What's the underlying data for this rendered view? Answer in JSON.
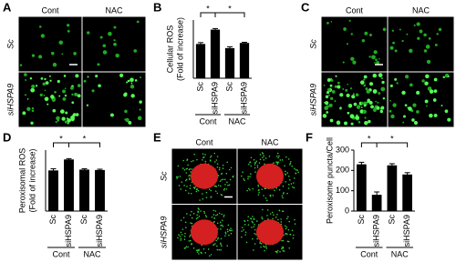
{
  "panel_labels": [
    "A",
    "B",
    "C",
    "D",
    "E",
    "F"
  ],
  "image_panels": [
    {
      "columns": [
        "Cont",
        "NAC"
      ],
      "rows": [
        "Sc",
        "siHSPA9"
      ]
    },
    {
      "columns": [
        "Cont",
        "NAC"
      ],
      "rows": [
        "Sc",
        "siHSPA9"
      ]
    },
    {
      "columns": [
        "Cont",
        "NAC"
      ],
      "rows": [
        "Sc",
        "siHSPA9"
      ]
    }
  ],
  "chart_data": [
    {
      "type": "bar",
      "ylabel": [
        "Cellular ROS",
        "(Fold of increase)"
      ],
      "categories": [
        "Sc",
        "siHSPA9",
        "Sc",
        "siHSPA9"
      ],
      "groups": [
        "Cont",
        "NAC"
      ],
      "values": [
        1.0,
        1.42,
        0.88,
        1.03
      ],
      "errors": [
        0.04,
        0.03,
        0.04,
        0.02
      ],
      "color": "#000000",
      "ylim": [
        0,
        1.7
      ],
      "annotations": [
        "*",
        "*"
      ]
    },
    {
      "type": "bar",
      "ylabel": [
        "Peroxisomal ROS",
        "(Fold of increase)"
      ],
      "categories": [
        "Sc",
        "siHSPA9",
        "Sc",
        "siHSPA9"
      ],
      "groups": [
        "Cont",
        "NAC"
      ],
      "values": [
        1.0,
        1.27,
        1.02,
        1.01
      ],
      "errors": [
        0.04,
        0.02,
        0.02,
        0.02
      ],
      "color": "#000000",
      "ylim": [
        0,
        1.5
      ],
      "annotations": [
        "*",
        "*"
      ]
    },
    {
      "type": "bar",
      "ylabel": [
        "Peroxisome puncta/Cell"
      ],
      "categories": [
        "Sc",
        "siHSPA9",
        "Sc",
        "siHSPA9"
      ],
      "groups": [
        "Cont",
        "NAC"
      ],
      "values": [
        230,
        80,
        225,
        180
      ],
      "errors": [
        10,
        14,
        8,
        9
      ],
      "color": "#000000",
      "ylim": [
        0,
        300
      ],
      "yticks": [
        0,
        100,
        200,
        300
      ],
      "annotations": [
        "*",
        "*"
      ]
    }
  ]
}
